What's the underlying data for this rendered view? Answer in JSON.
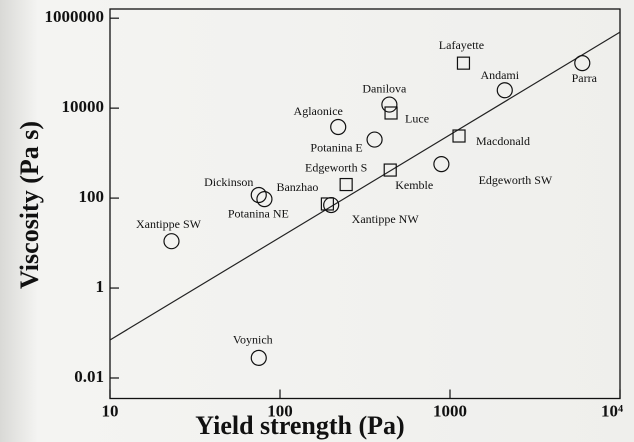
{
  "chart_data": {
    "type": "scatter",
    "xlabel": "Yield strength (Pa)",
    "ylabel": "Viscosity (Pa s)",
    "xscale": "log",
    "yscale": "log",
    "xlim": [
      10,
      10000
    ],
    "ylim": [
      0.0035,
      1600000
    ],
    "xticks": [
      10,
      100,
      1000,
      {
        "value": 10000,
        "label": "10⁴"
      }
    ],
    "yticks": [
      0.01,
      1,
      100,
      10000,
      1000000
    ],
    "color": "#111111",
    "series": [
      {
        "marker": "circle",
        "labels": [
          "Parra",
          "Andami",
          "Danilova",
          "Aglaonice",
          "Potanina  E",
          "Edgeworth SW",
          "Dickinson",
          "Banzhao",
          "Xantippe NW",
          "Xantippe SW",
          "Voynich"
        ],
        "x": [
          6000,
          2100,
          440,
          220,
          360,
          890,
          75,
          81,
          200,
          23,
          75
        ],
        "values": [
          100000,
          25000,
          12000,
          3800,
          2000,
          570,
          117,
          95,
          70,
          11,
          0.028
        ]
      },
      {
        "marker": "square",
        "labels": [
          "Lafayette",
          "Luce",
          "Macdonald",
          "Edgeworth S",
          "Kemble",
          "Potanina NE"
        ],
        "x": [
          1200,
          450,
          1130,
          245,
          445,
          190
        ],
        "values": [
          100000,
          7800,
          2400,
          200,
          420,
          74
        ]
      }
    ],
    "fit_line": {
      "x": [
        10,
        10000
      ],
      "values": [
        0.07,
        490000
      ]
    }
  }
}
